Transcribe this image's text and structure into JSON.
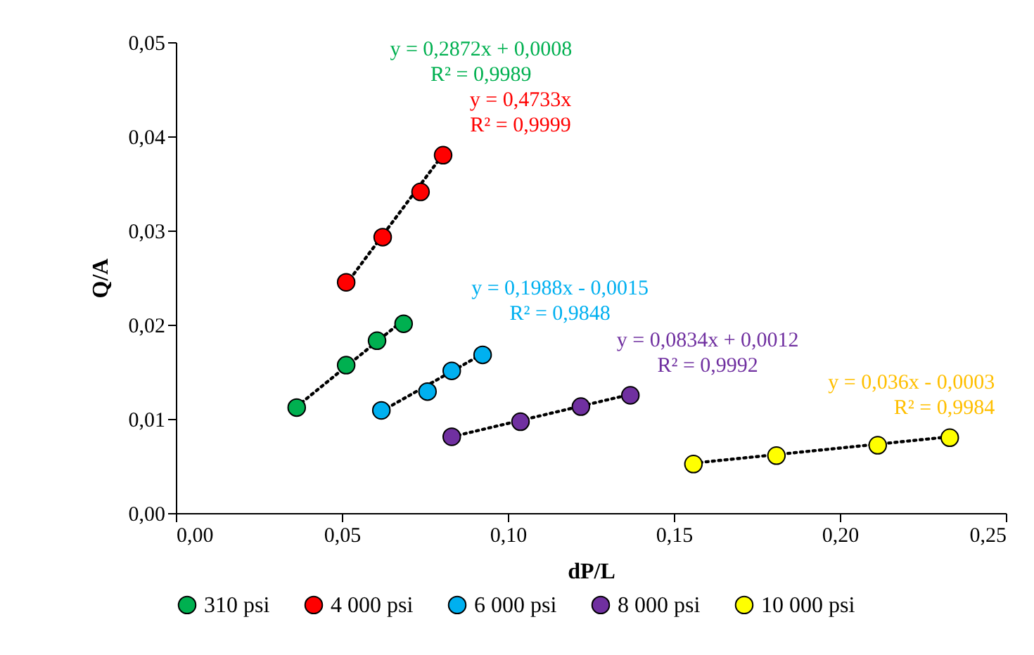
{
  "chart_data": {
    "type": "scatter",
    "xlabel": "dP/L",
    "ylabel": "Q/A",
    "xlim": [
      0,
      0.25
    ],
    "ylim": [
      0,
      0.05
    ],
    "xticks": [
      {
        "value": 0,
        "label": "0,00"
      },
      {
        "value": 0.05,
        "label": "0,05"
      },
      {
        "value": 0.1,
        "label": "0,10"
      },
      {
        "value": 0.15,
        "label": "0,15"
      },
      {
        "value": 0.2,
        "label": "0,20"
      },
      {
        "value": 0.25,
        "label": "0,25"
      }
    ],
    "yticks": [
      {
        "value": 0,
        "label": "0,00"
      },
      {
        "value": 0.01,
        "label": "0,01"
      },
      {
        "value": 0.02,
        "label": "0,02"
      },
      {
        "value": 0.03,
        "label": "0,03"
      },
      {
        "value": 0.04,
        "label": "0,04"
      },
      {
        "value": 0.05,
        "label": "0,05"
      }
    ],
    "legend": "bottom",
    "marker": "circle",
    "series": [
      {
        "type": "line",
        "color": "#000000",
        "line_style": "dotted",
        "marker": "none",
        "x": [
          0.0364,
          0.0686
        ],
        "values": [
          0.0113,
          0.0205
        ]
      },
      {
        "type": "line",
        "color": "#000000",
        "line_style": "dotted",
        "marker": "none",
        "x": [
          0.0513,
          0.0805
        ],
        "values": [
          0.0243,
          0.0381
        ]
      },
      {
        "type": "line",
        "color": "#000000",
        "line_style": "dotted",
        "marker": "none",
        "x": [
          0.0619,
          0.0924
        ],
        "values": [
          0.0108,
          0.0169
        ]
      },
      {
        "type": "line",
        "color": "#000000",
        "line_style": "dotted",
        "marker": "none",
        "x": [
          0.0831,
          0.1369
        ],
        "values": [
          0.0081,
          0.0126
        ]
      },
      {
        "type": "line",
        "color": "#000000",
        "line_style": "dotted",
        "marker": "none",
        "x": [
          0.1559,
          0.2331
        ],
        "values": [
          0.0053,
          0.0081
        ]
      },
      {
        "name": "310 psi",
        "color": "#00b050",
        "x": [
          0.0364,
          0.0513,
          0.0606,
          0.0686
        ],
        "values": [
          0.0112,
          0.0157,
          0.0183,
          0.0201
        ]
      },
      {
        "name": "4 000 psi",
        "color": "#ff0000",
        "x": [
          0.0513,
          0.0623,
          0.0737,
          0.0805
        ],
        "values": [
          0.0245,
          0.0293,
          0.0341,
          0.038
        ]
      },
      {
        "name": "6 000 psi",
        "color": "#00b0f0",
        "x": [
          0.0619,
          0.0758,
          0.0831,
          0.0924
        ],
        "values": [
          0.0109,
          0.0129,
          0.0151,
          0.0168
        ]
      },
      {
        "name": "8 000 psi",
        "color": "#7030a0",
        "x": [
          0.0831,
          0.1038,
          0.122,
          0.1369
        ],
        "values": [
          0.0081,
          0.0097,
          0.0113,
          0.0125
        ]
      },
      {
        "name": "10 000 psi",
        "color": "#ffff00",
        "x": [
          0.1559,
          0.1809,
          0.2114,
          0.2331
        ],
        "values": [
          0.0052,
          0.0061,
          0.0072,
          0.008
        ]
      }
    ],
    "annotations": [
      "y = 0,2872x + 0,0008",
      "R² = 0,9989",
      "y = 0,4733x",
      "R² = 0,9999",
      "y = 0,1988x - 0,0015",
      "R² = 0,9848",
      "y = 0,0834x + 0,0012",
      "R² = 0,9992",
      "y = 0,036x - 0,0003",
      "R² = 0,9984"
    ]
  }
}
